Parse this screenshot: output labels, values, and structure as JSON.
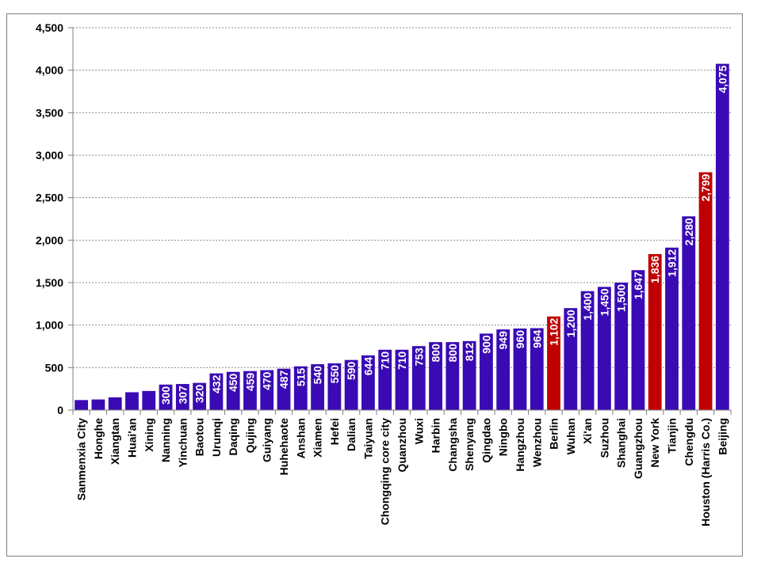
{
  "chart_data": {
    "type": "bar",
    "title": "",
    "xlabel": "",
    "ylabel": "",
    "ylim": [
      0,
      4500
    ],
    "yticks": [
      0,
      500,
      1000,
      1500,
      2000,
      2500,
      3000,
      3500,
      4000,
      4500
    ],
    "ytick_labels": [
      "0",
      "500",
      "1,000",
      "1,500",
      "2,000",
      "2,500",
      "3,000",
      "3,500",
      "4,000",
      "4,500"
    ],
    "grid": "horizontal dashed",
    "legend": "none",
    "colors": {
      "china": "#3a0bb4",
      "foreign": "#c00000",
      "grid": "#8c8c8c",
      "axis": "#7f7f7f"
    },
    "categories": [
      "Sanmenxia City",
      "Honghe",
      "Xiangtan",
      "Huai'an",
      "Xining",
      "Nanning",
      "Yinchuan",
      "Baotou",
      "Urumqi",
      "Daqing",
      "Qujing",
      "Guiyang",
      "Huhehaote",
      "Anshan",
      "Xiamen",
      "Hefei",
      "Dalian",
      "Taiyuan",
      "Chongqing core city",
      "Quanzhou",
      "Wuxi",
      "Harbin",
      "Changsha",
      "Shenyang",
      "Qingdao",
      "Ningbo",
      "Hangzhou",
      "Wenzhou",
      "Berlin",
      "Wuhan",
      "Xi'an",
      "Suzhou",
      "Shanghai",
      "Guangzhou",
      "New York",
      "Tianjin",
      "Chengdu",
      "Houston (Harris Co.)",
      "Beijing"
    ],
    "values": [
      118,
      125,
      150,
      210,
      225,
      300,
      307,
      320,
      432,
      450,
      459,
      470,
      487,
      515,
      540,
      550,
      590,
      644,
      710,
      710,
      753,
      800,
      800,
      812,
      900,
      949,
      960,
      964,
      1102,
      1200,
      1400,
      1450,
      1500,
      1647,
      1836,
      1912,
      2280,
      2799,
      4075
    ],
    "value_labels": [
      "118",
      "125",
      "150",
      "210",
      "225",
      "300",
      "307",
      "320",
      "432",
      "450",
      "459",
      "470",
      "487",
      "515",
      "540",
      "550",
      "590",
      "644",
      "710",
      "710",
      "753",
      "800",
      "800",
      "812",
      "900",
      "949",
      "960",
      "964",
      "1,102",
      "1,200",
      "1,400",
      "1,450",
      "1,500",
      "1,647",
      "1,836",
      "1,912",
      "2,280",
      "2,799",
      "4,075"
    ],
    "highlight": [
      "Berlin",
      "New York",
      "Houston (Harris Co.)"
    ]
  }
}
